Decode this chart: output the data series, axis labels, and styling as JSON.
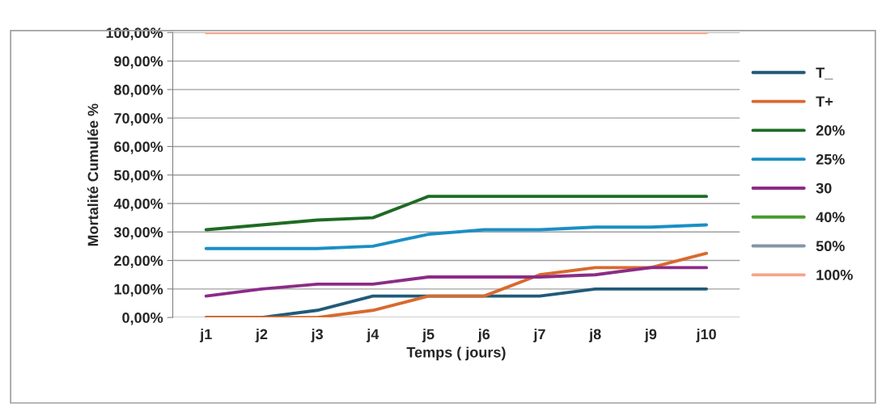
{
  "chart_data": {
    "type": "line",
    "xlabel": "Temps ( jours)",
    "ylabel": "Mortalité Cumulée %",
    "categories": [
      "j1",
      "j2",
      "j3",
      "j4",
      "j5",
      "j6",
      "j7",
      "j8",
      "j9",
      "j10"
    ],
    "series": [
      {
        "name": "T_",
        "color": "#215a78",
        "values": [
          0,
          0,
          2.5,
          7.5,
          7.5,
          7.5,
          7.5,
          10,
          10,
          10
        ]
      },
      {
        "name": "T+",
        "color": "#d9692e",
        "values": [
          0,
          0,
          0,
          2.5,
          7.5,
          7.5,
          15,
          17.5,
          17.5,
          22.5
        ]
      },
      {
        "name": "20%",
        "color": "#1e6b24",
        "values": [
          30.8,
          32.5,
          34.2,
          35,
          42.5,
          42.5,
          42.5,
          42.5,
          42.5,
          42.5
        ]
      },
      {
        "name": "25%",
        "color": "#1a8fc4",
        "values": [
          24.2,
          24.2,
          24.2,
          25,
          29.2,
          30.8,
          30.8,
          31.7,
          31.7,
          32.5
        ]
      },
      {
        "name": "30",
        "color": "#8b2c86",
        "values": [
          7.5,
          10,
          11.7,
          11.7,
          14.2,
          14.2,
          14.2,
          15,
          17.5,
          17.5
        ]
      },
      {
        "name": "40%",
        "color": "#4a9a2e",
        "values": [
          null,
          null,
          null,
          null,
          null,
          null,
          null,
          null,
          null,
          null
        ]
      },
      {
        "name": "50%",
        "color": "#8495a8",
        "values": [
          null,
          null,
          null,
          null,
          null,
          null,
          null,
          null,
          null,
          null
        ]
      },
      {
        "name": "100%",
        "color": "#f4a58a",
        "values": [
          100,
          100,
          100,
          100,
          100,
          100,
          100,
          100,
          100,
          100
        ]
      }
    ],
    "ylim": [
      0,
      100
    ],
    "yticks": [
      {
        "value": 0,
        "label": "0,00%"
      },
      {
        "value": 10,
        "label": "10,00%"
      },
      {
        "value": 20,
        "label": "20,00%"
      },
      {
        "value": 30,
        "label": "30,00%"
      },
      {
        "value": 40,
        "label": "40,00%"
      },
      {
        "value": 50,
        "label": "50,00%"
      },
      {
        "value": 60,
        "label": "60,00%"
      },
      {
        "value": 70,
        "label": "70,00%"
      },
      {
        "value": 80,
        "label": "80,00%"
      },
      {
        "value": 90,
        "label": "90,00%"
      },
      {
        "value": 100,
        "label": "100,00%"
      }
    ],
    "grid": "y",
    "legend": "right",
    "marker": "none",
    "line_style": "solid"
  }
}
